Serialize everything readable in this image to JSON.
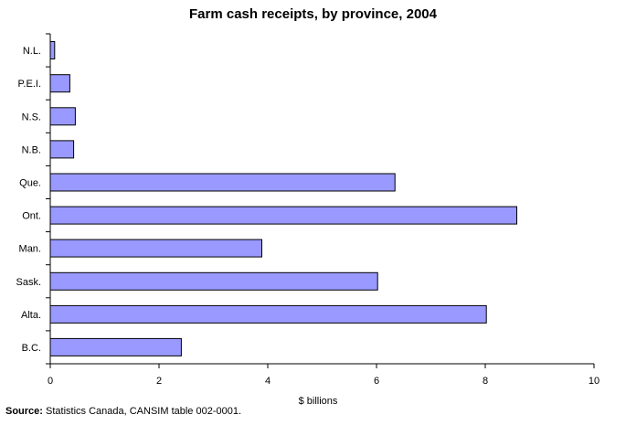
{
  "chart_data": {
    "type": "bar",
    "orientation": "horizontal",
    "title": "Farm cash receipts, by province, 2004",
    "xlabel": "$ billions",
    "ylabel": "",
    "xlim": [
      0,
      10
    ],
    "xticks": [
      0,
      2,
      4,
      6,
      8,
      10
    ],
    "grid": false,
    "categories": [
      "N.L.",
      "P.E.I.",
      "N.S.",
      "N.B.",
      "Que.",
      "Ont.",
      "Man.",
      "Sask.",
      "Alta.",
      "B.C."
    ],
    "values": [
      0.08,
      0.36,
      0.46,
      0.43,
      6.34,
      8.58,
      3.89,
      6.02,
      8.02,
      2.41
    ],
    "bar_color": "#9999ff",
    "bar_edge_color": "#000000"
  },
  "source": {
    "label": "Source:",
    "text": " Statistics Canada, CANSIM table 002-0001."
  }
}
